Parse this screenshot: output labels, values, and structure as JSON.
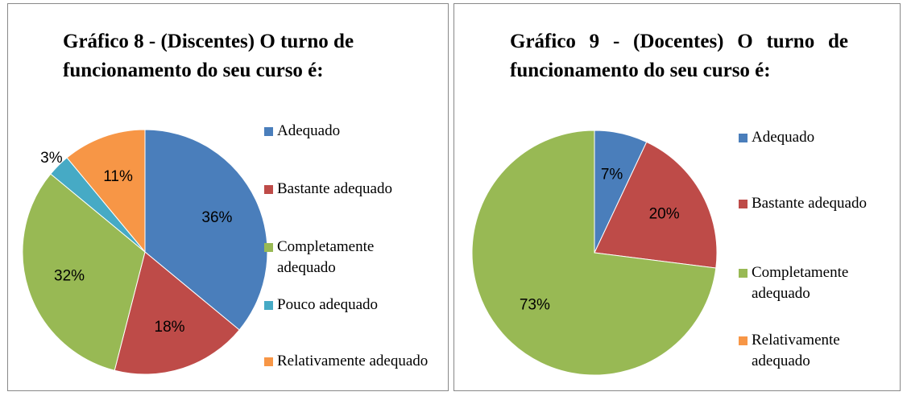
{
  "chart_data": [
    {
      "type": "pie",
      "title": "Gráfico 8 - (Discentes) O turno de funcionamento do seu curso é:",
      "categories": [
        "Adequado",
        "Bastante adequado",
        "Completamente adequado",
        "Pouco adequado",
        "Relativamente adequado"
      ],
      "values": [
        36,
        18,
        32,
        3,
        11
      ],
      "value_labels": [
        "36%",
        "18%",
        "32%",
        "3%",
        "11%"
      ],
      "colors": [
        "#4a7ebb",
        "#be4b48",
        "#98b954",
        "#46aac5",
        "#f79646"
      ]
    },
    {
      "type": "pie",
      "title": "Gráfico 9 - (Docentes) O turno de funcionamento do seu curso é:",
      "categories": [
        "Adequado",
        "Bastante adequado",
        "Completamente adequado",
        "Relativamente adequado"
      ],
      "values": [
        7,
        20,
        73,
        0
      ],
      "value_labels": [
        "7%",
        "20%",
        "73%",
        null
      ],
      "colors": [
        "#4a7ebb",
        "#be4b48",
        "#98b954",
        "#f79646"
      ]
    }
  ]
}
